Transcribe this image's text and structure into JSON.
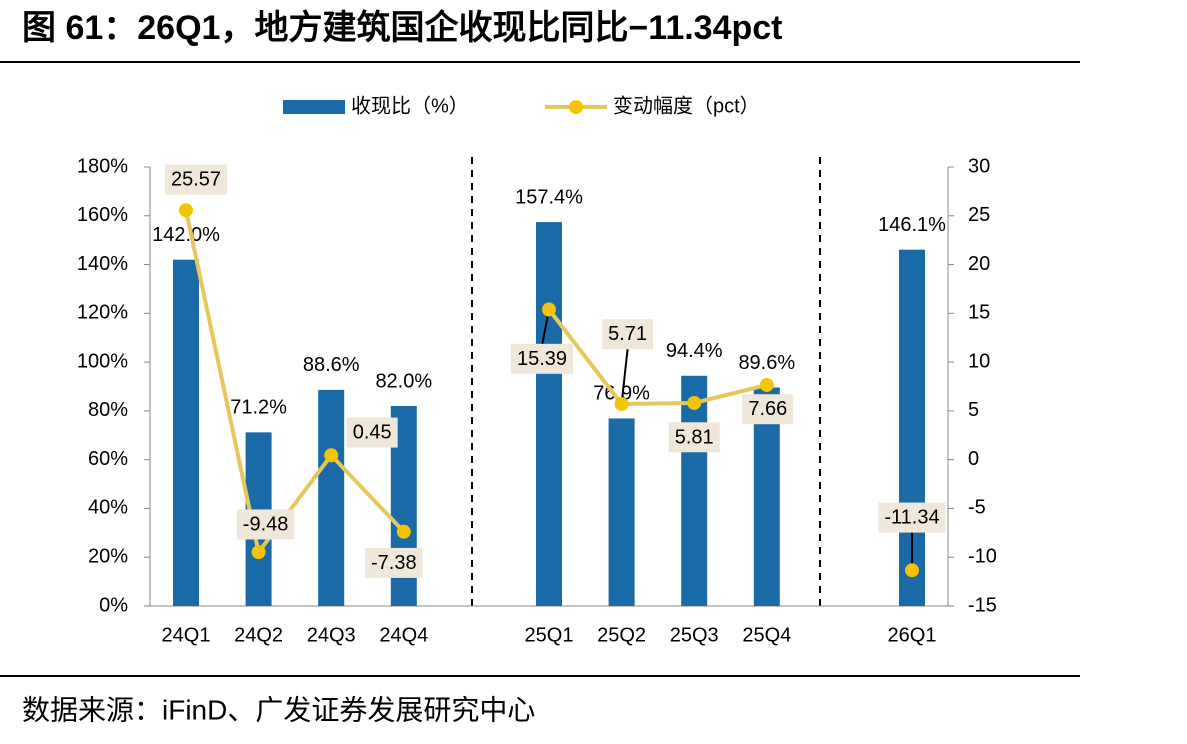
{
  "header": {
    "title": "图 61：26Q1，地方建筑国企收现比同比−11.34pct"
  },
  "chart_data": {
    "type": "bar-line",
    "categories": [
      "24Q1",
      "24Q2",
      "24Q3",
      "24Q4",
      null,
      "25Q1",
      "25Q2",
      "25Q3",
      "25Q4",
      null,
      "26Q1"
    ],
    "series": [
      {
        "name": "收现比（%）",
        "type": "bar",
        "color": "#1b6aa8",
        "values": [
          142.0,
          71.2,
          88.6,
          82.0,
          null,
          157.4,
          76.9,
          94.4,
          89.6,
          null,
          146.1
        ],
        "value_labels": [
          "142.0%",
          "71.2%",
          "88.6%",
          "82.0%",
          null,
          "157.4%",
          "76.9%",
          "94.4%",
          "89.6%",
          null,
          "146.1%"
        ]
      },
      {
        "name": "变动幅度（pct）",
        "type": "line",
        "axis": "y2",
        "color": "#e6c75e",
        "marker_color": "#f5c400",
        "values": [
          25.57,
          -9.48,
          0.45,
          -7.38,
          null,
          15.39,
          5.71,
          5.81,
          7.66,
          null,
          -11.34
        ]
      }
    ],
    "ylim": [
      0,
      180
    ],
    "yticks": [
      {
        "value": 0,
        "label": "0%"
      },
      {
        "value": 20,
        "label": "20%"
      },
      {
        "value": 40,
        "label": "40%"
      },
      {
        "value": 60,
        "label": "60%"
      },
      {
        "value": 80,
        "label": "80%"
      },
      {
        "value": 100,
        "label": "100%"
      },
      {
        "value": 120,
        "label": "120%"
      },
      {
        "value": 140,
        "label": "140%"
      },
      {
        "value": 160,
        "label": "160%"
      },
      {
        "value": 180,
        "label": "180%"
      }
    ],
    "y2lim": [
      -15,
      30
    ],
    "y2ticks": [
      -15,
      -10,
      -5,
      0,
      5,
      10,
      15,
      20,
      25,
      30
    ],
    "legend": "top",
    "grid": false
  },
  "footer": {
    "source": "数据来源：iFinD、广发证券发展研究中心"
  }
}
